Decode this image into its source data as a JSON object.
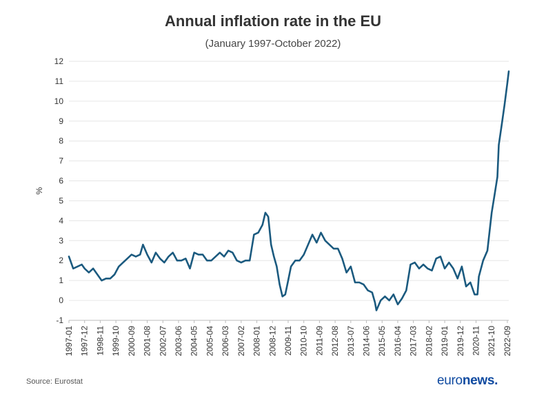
{
  "chart_data": {
    "type": "line",
    "title": "Annual inflation rate in the EU",
    "subtitle": "(January 1997-October 2022)",
    "ylabel": "%",
    "xlabel": "",
    "ylim": [
      -1,
      12
    ],
    "yticks": [
      "-1",
      "0",
      "1",
      "2",
      "3",
      "4",
      "5",
      "6",
      "7",
      "8",
      "9",
      "10",
      "11",
      "12"
    ],
    "xticks": [
      "1997-01",
      "1997-12",
      "1998-11",
      "1999-10",
      "2000-09",
      "2001-08",
      "2002-07",
      "2003-06",
      "2004-05",
      "2005-04",
      "2006-03",
      "2007-02",
      "2008-01",
      "2008-12",
      "2009-11",
      "2010-10",
      "2011-09",
      "2012-08",
      "2013-07",
      "2014-06",
      "2015-05",
      "2016-04",
      "2017-03",
      "2018-02",
      "2019-01",
      "2019-12",
      "2020-11",
      "2021-10",
      "2022-09"
    ],
    "grid": "horizontal",
    "color": "#1b5a7f",
    "series": [
      {
        "name": "Annual inflation rate",
        "start": "1997-01",
        "end": "2022-10",
        "frequency": "monthly",
        "points": [
          [
            "1997-01",
            2.2
          ],
          [
            "1997-04",
            1.6
          ],
          [
            "1997-07",
            1.7
          ],
          [
            "1997-10",
            1.8
          ],
          [
            "1997-12",
            1.6
          ],
          [
            "1998-03",
            1.4
          ],
          [
            "1998-06",
            1.6
          ],
          [
            "1998-09",
            1.3
          ],
          [
            "1998-12",
            1.0
          ],
          [
            "1999-03",
            1.1
          ],
          [
            "1999-06",
            1.1
          ],
          [
            "1999-09",
            1.3
          ],
          [
            "1999-12",
            1.7
          ],
          [
            "2000-03",
            1.9
          ],
          [
            "2000-06",
            2.1
          ],
          [
            "2000-09",
            2.3
          ],
          [
            "2000-12",
            2.2
          ],
          [
            "2001-03",
            2.3
          ],
          [
            "2001-05",
            2.8
          ],
          [
            "2001-08",
            2.3
          ],
          [
            "2001-11",
            1.9
          ],
          [
            "2002-02",
            2.4
          ],
          [
            "2002-05",
            2.1
          ],
          [
            "2002-08",
            1.9
          ],
          [
            "2002-11",
            2.2
          ],
          [
            "2003-02",
            2.4
          ],
          [
            "2003-05",
            2.0
          ],
          [
            "2003-08",
            2.0
          ],
          [
            "2003-11",
            2.1
          ],
          [
            "2004-02",
            1.6
          ],
          [
            "2004-05",
            2.4
          ],
          [
            "2004-08",
            2.3
          ],
          [
            "2004-11",
            2.3
          ],
          [
            "2005-02",
            2.0
          ],
          [
            "2005-05",
            2.0
          ],
          [
            "2005-08",
            2.2
          ],
          [
            "2005-11",
            2.4
          ],
          [
            "2006-02",
            2.2
          ],
          [
            "2006-05",
            2.5
          ],
          [
            "2006-08",
            2.4
          ],
          [
            "2006-11",
            2.0
          ],
          [
            "2007-02",
            1.9
          ],
          [
            "2007-05",
            2.0
          ],
          [
            "2007-08",
            2.0
          ],
          [
            "2007-11",
            3.3
          ],
          [
            "2008-02",
            3.4
          ],
          [
            "2008-05",
            3.8
          ],
          [
            "2008-07",
            4.4
          ],
          [
            "2008-09",
            4.2
          ],
          [
            "2008-11",
            2.8
          ],
          [
            "2009-01",
            2.2
          ],
          [
            "2009-03",
            1.7
          ],
          [
            "2009-05",
            0.8
          ],
          [
            "2009-07",
            0.2
          ],
          [
            "2009-09",
            0.3
          ],
          [
            "2009-11",
            1.0
          ],
          [
            "2010-01",
            1.7
          ],
          [
            "2010-04",
            2.0
          ],
          [
            "2010-07",
            2.0
          ],
          [
            "2010-10",
            2.3
          ],
          [
            "2011-01",
            2.8
          ],
          [
            "2011-04",
            3.3
          ],
          [
            "2011-07",
            2.9
          ],
          [
            "2011-10",
            3.4
          ],
          [
            "2012-01",
            3.0
          ],
          [
            "2012-04",
            2.8
          ],
          [
            "2012-07",
            2.6
          ],
          [
            "2012-10",
            2.6
          ],
          [
            "2013-01",
            2.1
          ],
          [
            "2013-04",
            1.4
          ],
          [
            "2013-07",
            1.7
          ],
          [
            "2013-10",
            0.9
          ],
          [
            "2014-01",
            0.9
          ],
          [
            "2014-04",
            0.8
          ],
          [
            "2014-07",
            0.5
          ],
          [
            "2014-10",
            0.4
          ],
          [
            "2014-12",
            -0.1
          ],
          [
            "2015-01",
            -0.5
          ],
          [
            "2015-04",
            0.0
          ],
          [
            "2015-07",
            0.2
          ],
          [
            "2015-10",
            0.0
          ],
          [
            "2016-01",
            0.3
          ],
          [
            "2016-04",
            -0.2
          ],
          [
            "2016-07",
            0.1
          ],
          [
            "2016-10",
            0.5
          ],
          [
            "2017-01",
            1.8
          ],
          [
            "2017-04",
            1.9
          ],
          [
            "2017-07",
            1.6
          ],
          [
            "2017-10",
            1.8
          ],
          [
            "2018-01",
            1.6
          ],
          [
            "2018-04",
            1.5
          ],
          [
            "2018-07",
            2.1
          ],
          [
            "2018-10",
            2.2
          ],
          [
            "2019-01",
            1.6
          ],
          [
            "2019-04",
            1.9
          ],
          [
            "2019-07",
            1.6
          ],
          [
            "2019-10",
            1.1
          ],
          [
            "2020-01",
            1.7
          ],
          [
            "2020-04",
            0.7
          ],
          [
            "2020-07",
            0.9
          ],
          [
            "2020-10",
            0.3
          ],
          [
            "2020-12",
            0.3
          ],
          [
            "2021-01",
            1.2
          ],
          [
            "2021-04",
            2.0
          ],
          [
            "2021-07",
            2.5
          ],
          [
            "2021-10",
            4.4
          ],
          [
            "2021-12",
            5.3
          ],
          [
            "2022-02",
            6.2
          ],
          [
            "2022-03",
            7.8
          ],
          [
            "2022-05",
            8.8
          ],
          [
            "2022-07",
            9.8
          ],
          [
            "2022-09",
            10.9
          ],
          [
            "2022-10",
            11.5
          ]
        ]
      }
    ]
  },
  "footer": {
    "source": "Source: Eurostat",
    "logo_light": "euro",
    "logo_bold": "news",
    "logo_dot": "."
  }
}
